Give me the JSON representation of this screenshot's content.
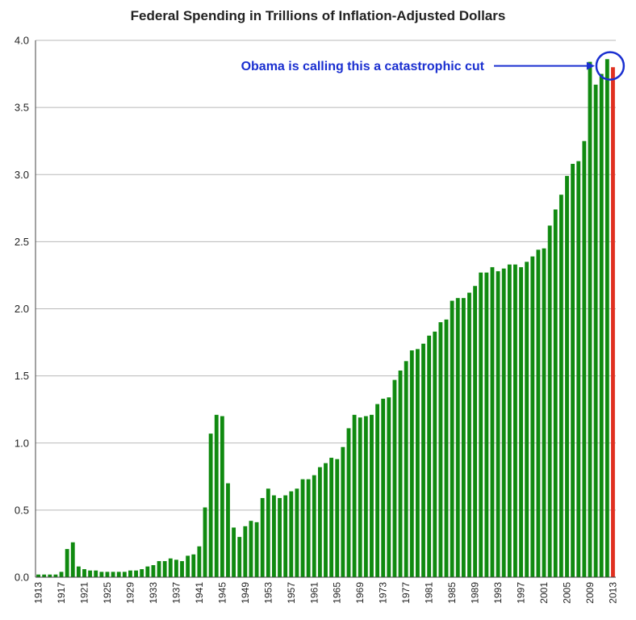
{
  "chart_data": {
    "type": "bar",
    "title": "Federal Spending in Trillions of Inflation-Adjusted Dollars",
    "xlabel": "",
    "ylabel": "",
    "ylim": [
      0,
      4.0
    ],
    "yticks": [
      "0.0",
      "0.5",
      "1.0",
      "1.5",
      "2.0",
      "2.5",
      "3.0",
      "3.5",
      "4.0"
    ],
    "grid": "horizontal",
    "x_start_year": 1913,
    "xtick_labels": [
      "1913",
      "1917",
      "1921",
      "1925",
      "1929",
      "1933",
      "1937",
      "1941",
      "1945",
      "1949",
      "1953",
      "1957",
      "1961",
      "1965",
      "1969",
      "1973",
      "1977",
      "1981",
      "1985",
      "1989",
      "1993",
      "1997",
      "2001",
      "2005",
      "2009",
      "2013"
    ],
    "bar_color": "#108a10",
    "highlight_color": "#e03020",
    "highlight_index": 100,
    "values": [
      0.02,
      0.02,
      0.02,
      0.02,
      0.04,
      0.21,
      0.26,
      0.08,
      0.06,
      0.05,
      0.05,
      0.04,
      0.04,
      0.04,
      0.04,
      0.04,
      0.05,
      0.05,
      0.06,
      0.08,
      0.09,
      0.12,
      0.12,
      0.14,
      0.13,
      0.12,
      0.16,
      0.17,
      0.23,
      0.52,
      1.07,
      1.21,
      1.2,
      0.7,
      0.37,
      0.3,
      0.38,
      0.42,
      0.41,
      0.59,
      0.66,
      0.61,
      0.59,
      0.61,
      0.64,
      0.66,
      0.73,
      0.73,
      0.76,
      0.82,
      0.85,
      0.89,
      0.88,
      0.97,
      1.11,
      1.21,
      1.19,
      1.2,
      1.21,
      1.29,
      1.33,
      1.34,
      1.47,
      1.54,
      1.61,
      1.69,
      1.7,
      1.74,
      1.8,
      1.83,
      1.9,
      1.92,
      2.06,
      2.08,
      2.08,
      2.12,
      2.17,
      2.27,
      2.27,
      2.31,
      2.28,
      2.3,
      2.33,
      2.33,
      2.31,
      2.35,
      2.39,
      2.44,
      2.45,
      2.62,
      2.74,
      2.85,
      2.99,
      3.08,
      3.1,
      3.25,
      3.84,
      3.67,
      3.75,
      3.86,
      3.8
    ]
  },
  "annotation": {
    "text": "Obama is calling this a catastrophic cut",
    "color": "#1a2fd0"
  }
}
